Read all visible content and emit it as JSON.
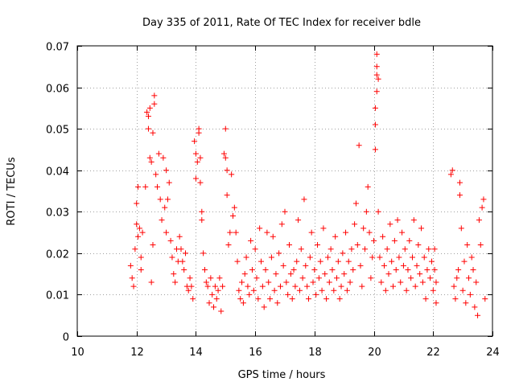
{
  "chart_data": {
    "type": "scatter",
    "title": "Day 335 of 2011, Rate Of TEC Index for receiver bdle",
    "xlabel": "GPS time / hours",
    "ylabel": "ROTI / TECUs",
    "xlim": [
      10,
      24
    ],
    "ylim": [
      0,
      0.07
    ],
    "xticks": [
      10,
      12,
      14,
      16,
      18,
      20,
      22,
      24
    ],
    "yticks": [
      0,
      0.01,
      0.02,
      0.03,
      0.04,
      0.05,
      0.06,
      0.07
    ],
    "xtick_labels": [
      "10",
      "12",
      "14",
      "16",
      "18",
      "20",
      "22",
      "24"
    ],
    "ytick_labels": [
      "0",
      "0.01",
      "0.02",
      "0.03",
      "0.04",
      "0.05",
      "0.06",
      "0.07"
    ],
    "grid": true,
    "marker": "+",
    "color": "#ff0000",
    "series": [
      {
        "name": "ROTI",
        "points": [
          [
            11.8,
            0.017
          ],
          [
            11.85,
            0.014
          ],
          [
            11.9,
            0.012
          ],
          [
            11.95,
            0.021
          ],
          [
            12.0,
            0.027
          ],
          [
            12.0,
            0.032
          ],
          [
            12.05,
            0.036
          ],
          [
            12.05,
            0.024
          ],
          [
            12.1,
            0.026
          ],
          [
            12.15,
            0.019
          ],
          [
            12.15,
            0.016
          ],
          [
            12.2,
            0.025
          ],
          [
            12.3,
            0.036
          ],
          [
            12.35,
            0.054
          ],
          [
            12.4,
            0.053
          ],
          [
            12.4,
            0.05
          ],
          [
            12.45,
            0.055
          ],
          [
            12.45,
            0.043
          ],
          [
            12.5,
            0.042
          ],
          [
            12.5,
            0.013
          ],
          [
            12.55,
            0.022
          ],
          [
            12.55,
            0.049
          ],
          [
            12.6,
            0.056
          ],
          [
            12.6,
            0.058
          ],
          [
            12.65,
            0.039
          ],
          [
            12.7,
            0.036
          ],
          [
            12.75,
            0.044
          ],
          [
            12.8,
            0.033
          ],
          [
            12.85,
            0.028
          ],
          [
            12.9,
            0.043
          ],
          [
            12.95,
            0.031
          ],
          [
            13.0,
            0.04
          ],
          [
            13.0,
            0.025
          ],
          [
            13.05,
            0.033
          ],
          [
            13.1,
            0.037
          ],
          [
            13.15,
            0.023
          ],
          [
            13.2,
            0.019
          ],
          [
            13.25,
            0.015
          ],
          [
            13.3,
            0.013
          ],
          [
            13.35,
            0.021
          ],
          [
            13.4,
            0.018
          ],
          [
            13.45,
            0.024
          ],
          [
            13.5,
            0.021
          ],
          [
            13.55,
            0.018
          ],
          [
            13.6,
            0.016
          ],
          [
            13.65,
            0.02
          ],
          [
            13.7,
            0.012
          ],
          [
            13.75,
            0.011
          ],
          [
            13.8,
            0.014
          ],
          [
            13.85,
            0.012
          ],
          [
            13.9,
            0.009
          ],
          [
            13.95,
            0.047
          ],
          [
            14.0,
            0.044
          ],
          [
            14.0,
            0.038
          ],
          [
            14.05,
            0.042
          ],
          [
            14.1,
            0.05
          ],
          [
            14.1,
            0.049
          ],
          [
            14.15,
            0.037
          ],
          [
            14.15,
            0.043
          ],
          [
            14.2,
            0.03
          ],
          [
            14.2,
            0.028
          ],
          [
            14.25,
            0.02
          ],
          [
            14.3,
            0.016
          ],
          [
            14.35,
            0.013
          ],
          [
            14.4,
            0.012
          ],
          [
            14.45,
            0.008
          ],
          [
            14.5,
            0.014
          ],
          [
            14.55,
            0.01
          ],
          [
            14.6,
            0.007
          ],
          [
            14.65,
            0.012
          ],
          [
            14.7,
            0.009
          ],
          [
            14.75,
            0.011
          ],
          [
            14.8,
            0.014
          ],
          [
            14.85,
            0.006
          ],
          [
            14.9,
            0.012
          ],
          [
            14.95,
            0.044
          ],
          [
            15.0,
            0.043
          ],
          [
            15.0,
            0.05
          ],
          [
            15.05,
            0.04
          ],
          [
            15.05,
            0.034
          ],
          [
            15.1,
            0.022
          ],
          [
            15.15,
            0.025
          ],
          [
            15.2,
            0.039
          ],
          [
            15.25,
            0.029
          ],
          [
            15.3,
            0.031
          ],
          [
            15.35,
            0.025
          ],
          [
            15.4,
            0.018
          ],
          [
            15.45,
            0.011
          ],
          [
            15.5,
            0.009
          ],
          [
            15.55,
            0.013
          ],
          [
            15.6,
            0.008
          ],
          [
            15.65,
            0.015
          ],
          [
            15.7,
            0.019
          ],
          [
            15.75,
            0.012
          ],
          [
            15.8,
            0.01
          ],
          [
            15.85,
            0.023
          ],
          [
            15.9,
            0.016
          ],
          [
            15.95,
            0.011
          ],
          [
            16.0,
            0.021
          ],
          [
            16.05,
            0.014
          ],
          [
            16.1,
            0.009
          ],
          [
            16.15,
            0.026
          ],
          [
            16.2,
            0.018
          ],
          [
            16.25,
            0.012
          ],
          [
            16.3,
            0.007
          ],
          [
            16.35,
            0.016
          ],
          [
            16.4,
            0.025
          ],
          [
            16.45,
            0.013
          ],
          [
            16.5,
            0.009
          ],
          [
            16.55,
            0.019
          ],
          [
            16.6,
            0.024
          ],
          [
            16.65,
            0.011
          ],
          [
            16.7,
            0.015
          ],
          [
            16.75,
            0.008
          ],
          [
            16.8,
            0.02
          ],
          [
            16.85,
            0.012
          ],
          [
            16.9,
            0.027
          ],
          [
            16.95,
            0.017
          ],
          [
            17.0,
            0.03
          ],
          [
            17.05,
            0.013
          ],
          [
            17.1,
            0.01
          ],
          [
            17.15,
            0.022
          ],
          [
            17.2,
            0.015
          ],
          [
            17.25,
            0.009
          ],
          [
            17.3,
            0.016
          ],
          [
            17.35,
            0.012
          ],
          [
            17.4,
            0.018
          ],
          [
            17.45,
            0.028
          ],
          [
            17.5,
            0.011
          ],
          [
            17.55,
            0.021
          ],
          [
            17.6,
            0.014
          ],
          [
            17.65,
            0.033
          ],
          [
            17.7,
            0.017
          ],
          [
            17.75,
            0.012
          ],
          [
            17.8,
            0.009
          ],
          [
            17.85,
            0.019
          ],
          [
            17.9,
            0.025
          ],
          [
            17.95,
            0.013
          ],
          [
            18.0,
            0.016
          ],
          [
            18.05,
            0.01
          ],
          [
            18.1,
            0.022
          ],
          [
            18.15,
            0.014
          ],
          [
            18.2,
            0.018
          ],
          [
            18.25,
            0.011
          ],
          [
            18.3,
            0.026
          ],
          [
            18.35,
            0.015
          ],
          [
            18.4,
            0.009
          ],
          [
            18.45,
            0.019
          ],
          [
            18.5,
            0.013
          ],
          [
            18.55,
            0.021
          ],
          [
            18.6,
            0.016
          ],
          [
            18.65,
            0.011
          ],
          [
            18.7,
            0.024
          ],
          [
            18.75,
            0.014
          ],
          [
            18.8,
            0.018
          ],
          [
            18.85,
            0.009
          ],
          [
            18.9,
            0.012
          ],
          [
            18.95,
            0.02
          ],
          [
            19.0,
            0.015
          ],
          [
            19.05,
            0.025
          ],
          [
            19.1,
            0.011
          ],
          [
            19.15,
            0.018
          ],
          [
            19.2,
            0.013
          ],
          [
            19.25,
            0.021
          ],
          [
            19.3,
            0.016
          ],
          [
            19.35,
            0.027
          ],
          [
            19.4,
            0.032
          ],
          [
            19.45,
            0.022
          ],
          [
            19.5,
            0.046
          ],
          [
            19.55,
            0.017
          ],
          [
            19.6,
            0.012
          ],
          [
            19.65,
            0.026
          ],
          [
            19.7,
            0.021
          ],
          [
            19.75,
            0.03
          ],
          [
            19.8,
            0.036
          ],
          [
            19.85,
            0.025
          ],
          [
            19.9,
            0.014
          ],
          [
            19.95,
            0.019
          ],
          [
            20.0,
            0.023
          ],
          [
            20.05,
            0.045
          ],
          [
            20.05,
            0.051
          ],
          [
            20.05,
            0.055
          ],
          [
            20.1,
            0.059
          ],
          [
            20.1,
            0.063
          ],
          [
            20.1,
            0.065
          ],
          [
            20.1,
            0.068
          ],
          [
            20.15,
            0.062
          ],
          [
            20.15,
            0.03
          ],
          [
            20.2,
            0.019
          ],
          [
            20.25,
            0.013
          ],
          [
            20.3,
            0.024
          ],
          [
            20.35,
            0.017
          ],
          [
            20.4,
            0.011
          ],
          [
            20.45,
            0.021
          ],
          [
            20.5,
            0.015
          ],
          [
            20.55,
            0.027
          ],
          [
            20.6,
            0.018
          ],
          [
            20.65,
            0.012
          ],
          [
            20.7,
            0.023
          ],
          [
            20.75,
            0.016
          ],
          [
            20.8,
            0.028
          ],
          [
            20.85,
            0.019
          ],
          [
            20.9,
            0.013
          ],
          [
            20.95,
            0.025
          ],
          [
            21.0,
            0.017
          ],
          [
            21.05,
            0.021
          ],
          [
            21.1,
            0.011
          ],
          [
            21.15,
            0.016
          ],
          [
            21.2,
            0.023
          ],
          [
            21.25,
            0.014
          ],
          [
            21.3,
            0.019
          ],
          [
            21.35,
            0.028
          ],
          [
            21.4,
            0.012
          ],
          [
            21.45,
            0.017
          ],
          [
            21.5,
            0.022
          ],
          [
            21.55,
            0.015
          ],
          [
            21.6,
            0.026
          ],
          [
            21.65,
            0.013
          ],
          [
            21.7,
            0.019
          ],
          [
            21.75,
            0.009
          ],
          [
            21.8,
            0.016
          ],
          [
            21.85,
            0.021
          ],
          [
            21.9,
            0.014
          ],
          [
            21.95,
            0.018
          ],
          [
            22.0,
            0.011
          ],
          [
            22.05,
            0.016
          ],
          [
            22.05,
            0.021
          ],
          [
            22.1,
            0.008
          ],
          [
            22.1,
            0.013
          ],
          [
            22.6,
            0.039
          ],
          [
            22.65,
            0.04
          ],
          [
            22.7,
            0.012
          ],
          [
            22.75,
            0.009
          ],
          [
            22.8,
            0.014
          ],
          [
            22.85,
            0.016
          ],
          [
            22.9,
            0.034
          ],
          [
            22.9,
            0.037
          ],
          [
            22.95,
            0.026
          ],
          [
            23.0,
            0.011
          ],
          [
            23.05,
            0.018
          ],
          [
            23.1,
            0.008
          ],
          [
            23.15,
            0.022
          ],
          [
            23.2,
            0.014
          ],
          [
            23.25,
            0.01
          ],
          [
            23.3,
            0.019
          ],
          [
            23.35,
            0.016
          ],
          [
            23.4,
            0.007
          ],
          [
            23.45,
            0.013
          ],
          [
            23.5,
            0.005
          ],
          [
            23.55,
            0.028
          ],
          [
            23.6,
            0.022
          ],
          [
            23.65,
            0.031
          ],
          [
            23.7,
            0.033
          ],
          [
            23.75,
            0.009
          ]
        ]
      }
    ]
  }
}
